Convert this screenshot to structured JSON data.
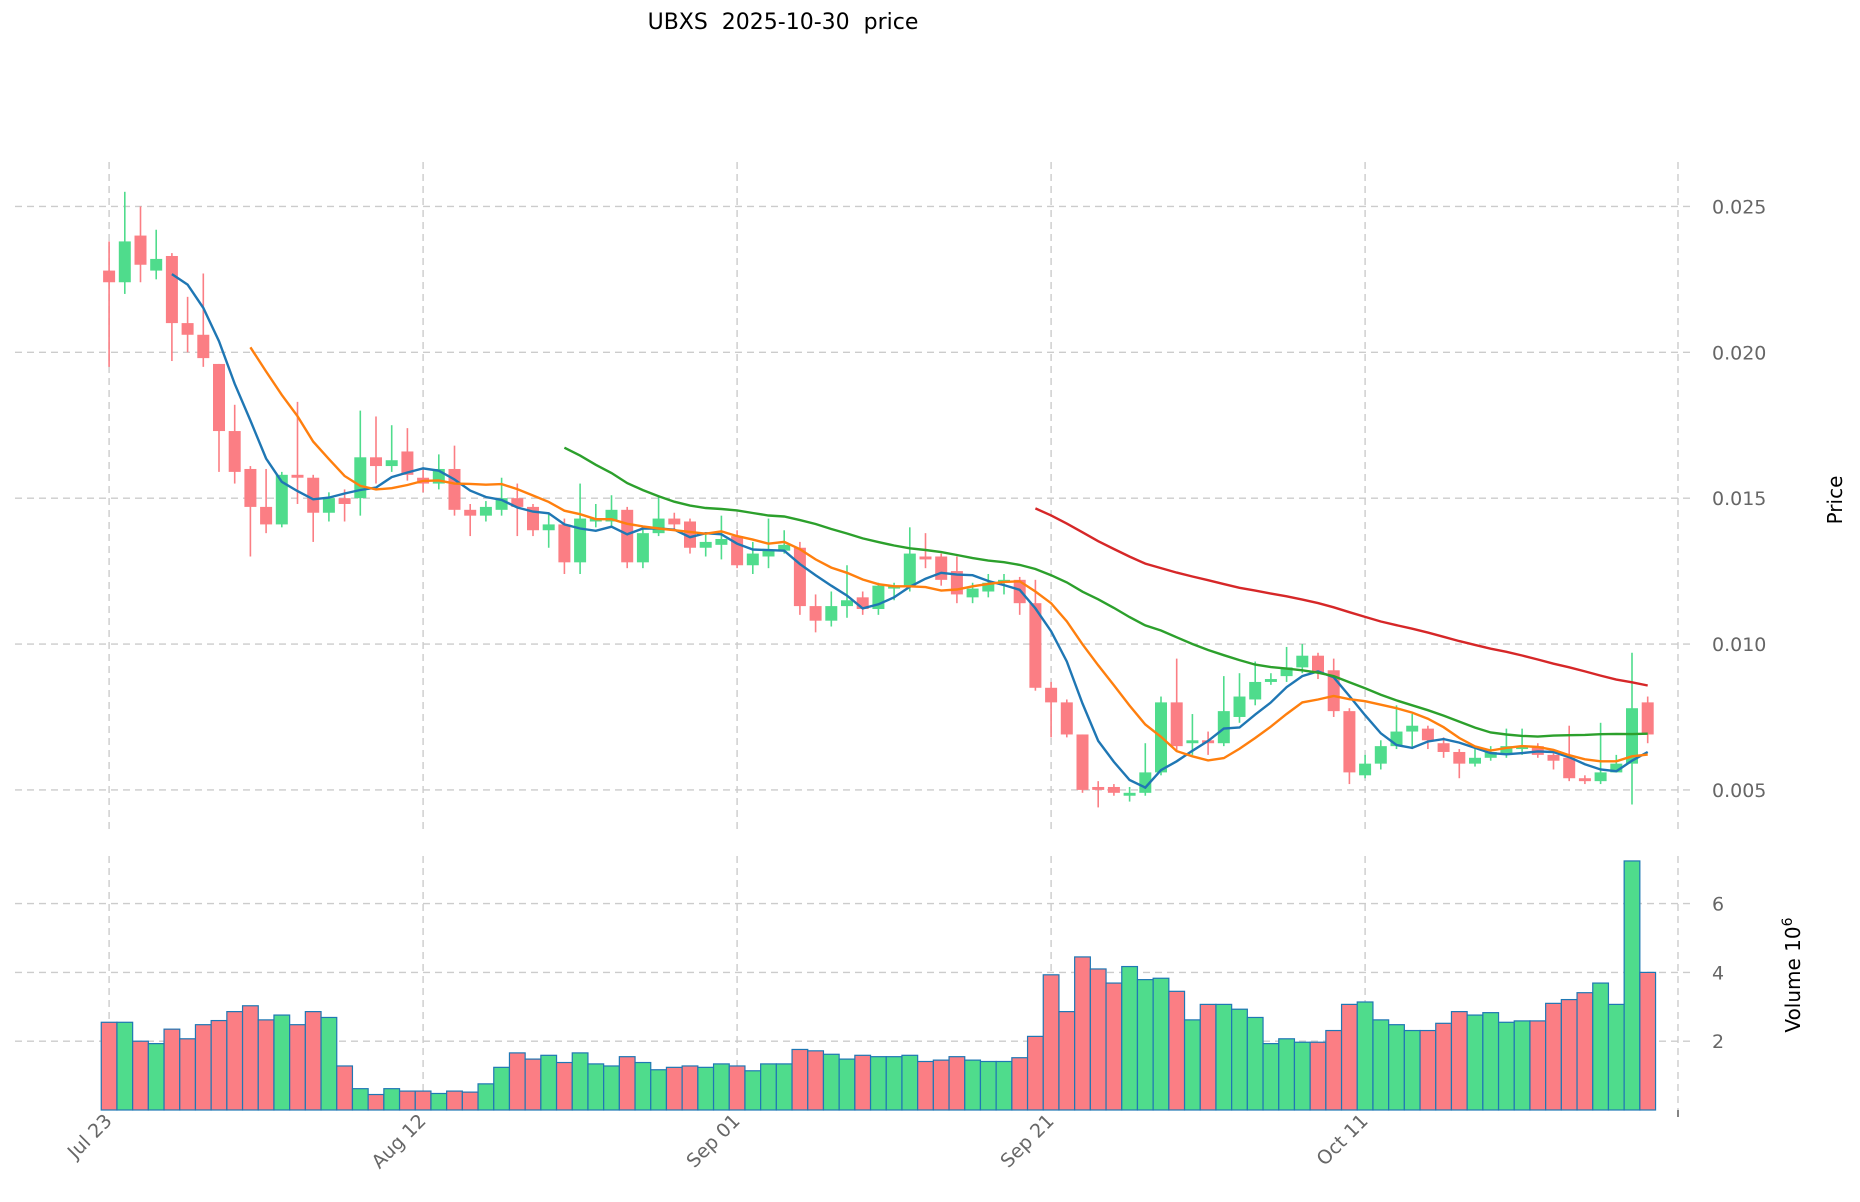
{
  "chart_data": {
    "type": "candlestick",
    "title": "UBXS  2025-10-30  price",
    "ylabel": "Price",
    "volume_label": "Volume",
    "volume_exponent": "10",
    "volume_exponent_power": "6",
    "ylim": [
      0.004,
      0.0265
    ],
    "volume_ylim": [
      0,
      7.4
    ],
    "yticks": [
      "0.005",
      "0.010",
      "0.015",
      "0.020",
      "0.025"
    ],
    "volume_ticks": [
      "2",
      "4",
      "6"
    ],
    "xtick_labels": [
      {
        "index": 0,
        "label": "Jul 23"
      },
      {
        "index": 20,
        "label": "Aug 12"
      },
      {
        "index": 40,
        "label": "Sep 01"
      },
      {
        "index": 60,
        "label": "Sep 21"
      },
      {
        "index": 80,
        "label": "Oct 11"
      }
    ],
    "grid": true,
    "colors": {
      "up": "#4fdc8c",
      "down": "#fb7e84",
      "volume_edge": "#1f77b4",
      "ma5": "#1f77b4",
      "ma10": "#ff7f0e",
      "ma30": "#2ca02c",
      "ma60": "#d62728"
    },
    "moving_averages": [
      5,
      10,
      30,
      60
    ],
    "ohlc": [
      [
        0.0228,
        0.0238,
        0.0195,
        0.0224
      ],
      [
        0.0224,
        0.0255,
        0.022,
        0.0238
      ],
      [
        0.024,
        0.025,
        0.0224,
        0.023
      ],
      [
        0.0228,
        0.0242,
        0.0225,
        0.0232
      ],
      [
        0.0233,
        0.0234,
        0.0197,
        0.021
      ],
      [
        0.021,
        0.0219,
        0.02,
        0.0206
      ],
      [
        0.0206,
        0.0227,
        0.0195,
        0.0198
      ],
      [
        0.0196,
        0.0196,
        0.0159,
        0.0173
      ],
      [
        0.0173,
        0.0182,
        0.0155,
        0.0159
      ],
      [
        0.016,
        0.0161,
        0.013,
        0.0147
      ],
      [
        0.0147,
        0.016,
        0.0138,
        0.0141
      ],
      [
        0.0141,
        0.0159,
        0.014,
        0.0158
      ],
      [
        0.0158,
        0.0183,
        0.0148,
        0.0157
      ],
      [
        0.0157,
        0.0158,
        0.0135,
        0.0145
      ],
      [
        0.0145,
        0.0152,
        0.0142,
        0.015
      ],
      [
        0.015,
        0.0153,
        0.0142,
        0.0148
      ],
      [
        0.015,
        0.018,
        0.0144,
        0.0164
      ],
      [
        0.0164,
        0.0178,
        0.0155,
        0.0161
      ],
      [
        0.0161,
        0.0175,
        0.0159,
        0.0163
      ],
      [
        0.0166,
        0.0174,
        0.0156,
        0.0158
      ],
      [
        0.0157,
        0.016,
        0.0152,
        0.0155
      ],
      [
        0.0155,
        0.0165,
        0.0153,
        0.016
      ],
      [
        0.016,
        0.0168,
        0.0144,
        0.0146
      ],
      [
        0.0146,
        0.0148,
        0.0137,
        0.0144
      ],
      [
        0.0144,
        0.0149,
        0.0142,
        0.0147
      ],
      [
        0.0146,
        0.0157,
        0.0144,
        0.015
      ],
      [
        0.015,
        0.0155,
        0.0137,
        0.0147
      ],
      [
        0.0147,
        0.0148,
        0.0137,
        0.0139
      ],
      [
        0.0139,
        0.0145,
        0.0133,
        0.0141
      ],
      [
        0.0141,
        0.0143,
        0.0124,
        0.0128
      ],
      [
        0.0128,
        0.0155,
        0.0124,
        0.0143
      ],
      [
        0.0142,
        0.0148,
        0.014,
        0.0143
      ],
      [
        0.0142,
        0.0151,
        0.014,
        0.0146
      ],
      [
        0.0146,
        0.0147,
        0.0126,
        0.0128
      ],
      [
        0.0128,
        0.014,
        0.0126,
        0.0138
      ],
      [
        0.0138,
        0.0151,
        0.0137,
        0.0143
      ],
      [
        0.0143,
        0.0145,
        0.0139,
        0.0141
      ],
      [
        0.0142,
        0.0143,
        0.0131,
        0.0133
      ],
      [
        0.0133,
        0.0138,
        0.013,
        0.0135
      ],
      [
        0.0134,
        0.0144,
        0.0129,
        0.0136
      ],
      [
        0.0137,
        0.0139,
        0.0126,
        0.0127
      ],
      [
        0.0127,
        0.0135,
        0.0124,
        0.0131
      ],
      [
        0.013,
        0.0143,
        0.0126,
        0.0132
      ],
      [
        0.0132,
        0.0139,
        0.0131,
        0.0134
      ],
      [
        0.0133,
        0.0135,
        0.011,
        0.0113
      ],
      [
        0.0113,
        0.0117,
        0.0104,
        0.0108
      ],
      [
        0.0108,
        0.0118,
        0.0106,
        0.0113
      ],
      [
        0.0113,
        0.0127,
        0.0109,
        0.0115
      ],
      [
        0.0116,
        0.0118,
        0.011,
        0.0112
      ],
      [
        0.0112,
        0.0121,
        0.011,
        0.012
      ],
      [
        0.0119,
        0.0121,
        0.0115,
        0.012
      ],
      [
        0.012,
        0.014,
        0.0118,
        0.0131
      ],
      [
        0.013,
        0.0138,
        0.0126,
        0.0129
      ],
      [
        0.013,
        0.0131,
        0.012,
        0.0122
      ],
      [
        0.0125,
        0.013,
        0.0114,
        0.0117
      ],
      [
        0.0116,
        0.0121,
        0.0114,
        0.0119
      ],
      [
        0.0118,
        0.0124,
        0.0116,
        0.0121
      ],
      [
        0.0121,
        0.0124,
        0.0117,
        0.0122
      ],
      [
        0.0122,
        0.0123,
        0.011,
        0.0114
      ],
      [
        0.0114,
        0.0122,
        0.0084,
        0.0085
      ],
      [
        0.0085,
        0.0087,
        0.0068,
        0.008
      ],
      [
        0.008,
        0.0081,
        0.0068,
        0.0069
      ],
      [
        0.0069,
        0.0069,
        0.0049,
        0.005
      ],
      [
        0.0051,
        0.0053,
        0.0044,
        0.005
      ],
      [
        0.0051,
        0.0052,
        0.0048,
        0.0049
      ],
      [
        0.0048,
        0.0051,
        0.0046,
        0.0049
      ],
      [
        0.0049,
        0.0066,
        0.0048,
        0.0056
      ],
      [
        0.0056,
        0.0082,
        0.0055,
        0.008
      ],
      [
        0.008,
        0.0095,
        0.0063,
        0.0065
      ],
      [
        0.0066,
        0.0076,
        0.0062,
        0.0067
      ],
      [
        0.0067,
        0.007,
        0.0062,
        0.0066
      ],
      [
        0.0066,
        0.0089,
        0.0065,
        0.0077
      ],
      [
        0.0075,
        0.009,
        0.0073,
        0.0082
      ],
      [
        0.0081,
        0.0094,
        0.0079,
        0.0087
      ],
      [
        0.0087,
        0.009,
        0.0086,
        0.0088
      ],
      [
        0.0089,
        0.0099,
        0.0087,
        0.0092
      ],
      [
        0.0092,
        0.01,
        0.009,
        0.0096
      ],
      [
        0.0096,
        0.0097,
        0.0088,
        0.009
      ],
      [
        0.0091,
        0.0095,
        0.0075,
        0.0077
      ],
      [
        0.0077,
        0.0078,
        0.0052,
        0.0056
      ],
      [
        0.0055,
        0.0062,
        0.0054,
        0.0059
      ],
      [
        0.0059,
        0.0067,
        0.0057,
        0.0065
      ],
      [
        0.0065,
        0.0079,
        0.0064,
        0.007
      ],
      [
        0.007,
        0.0076,
        0.0064,
        0.0072
      ],
      [
        0.0071,
        0.0072,
        0.0064,
        0.0067
      ],
      [
        0.0066,
        0.0068,
        0.0061,
        0.0063
      ],
      [
        0.0063,
        0.0064,
        0.0054,
        0.0059
      ],
      [
        0.0059,
        0.0064,
        0.0058,
        0.0061
      ],
      [
        0.0061,
        0.0065,
        0.006,
        0.0063
      ],
      [
        0.0062,
        0.0071,
        0.0061,
        0.0065
      ],
      [
        0.0064,
        0.0071,
        0.0062,
        0.0065
      ],
      [
        0.0065,
        0.0066,
        0.0061,
        0.0062
      ],
      [
        0.0062,
        0.0063,
        0.0057,
        0.006
      ],
      [
        0.0061,
        0.0072,
        0.0053,
        0.0054
      ],
      [
        0.0054,
        0.0055,
        0.0052,
        0.0053
      ],
      [
        0.0053,
        0.0073,
        0.0052,
        0.0056
      ],
      [
        0.0056,
        0.0062,
        0.0056,
        0.0059
      ],
      [
        0.0059,
        0.0097,
        0.0045,
        0.0078
      ],
      [
        0.008,
        0.0082,
        0.0066,
        0.0069
      ]
    ],
    "volume_millions": [
      2.55,
      2.55,
      2.0,
      1.93,
      2.35,
      2.07,
      2.48,
      2.6,
      2.86,
      3.03,
      2.62,
      2.76,
      2.48,
      2.86,
      2.69,
      1.28,
      0.62,
      0.45,
      0.62,
      0.55,
      0.55,
      0.48,
      0.55,
      0.52,
      0.76,
      1.24,
      1.66,
      1.48,
      1.59,
      1.38,
      1.66,
      1.34,
      1.28,
      1.55,
      1.38,
      1.17,
      1.24,
      1.28,
      1.24,
      1.34,
      1.28,
      1.14,
      1.34,
      1.34,
      1.76,
      1.72,
      1.62,
      1.48,
      1.59,
      1.55,
      1.55,
      1.59,
      1.41,
      1.45,
      1.55,
      1.45,
      1.41,
      1.41,
      1.52,
      2.14,
      3.93,
      2.86,
      4.45,
      4.1,
      3.69,
      4.17,
      3.79,
      3.83,
      3.45,
      2.62,
      3.07,
      3.07,
      2.93,
      2.69,
      1.93,
      2.07,
      1.97,
      1.97,
      2.31,
      3.07,
      3.14,
      2.62,
      2.48,
      2.31,
      2.31,
      2.52,
      2.86,
      2.76,
      2.83,
      2.55,
      2.59,
      2.59,
      3.1,
      3.21,
      3.41,
      3.69,
      3.07,
      7.24,
      4.0
    ]
  }
}
